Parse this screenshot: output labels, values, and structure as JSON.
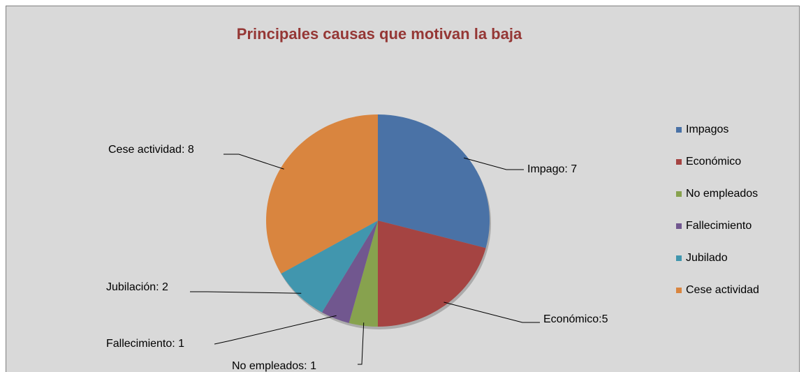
{
  "chart_data": {
    "type": "pie",
    "title": "Principales causas que motivan la baja",
    "categories": [
      "Impagos",
      "Económico",
      "No empleados",
      "Fallecimiento",
      "Jubilado",
      "Cese actividad"
    ],
    "values": [
      7,
      5,
      1,
      1,
      2,
      8
    ],
    "value_labels": [
      "Impago: 7",
      "Económico:5",
      "No empleados: 1",
      "Fallecimiento: 1",
      "Jubilación: 2",
      "Cese actividad: 8"
    ],
    "colors": [
      "#4a72a6",
      "#a54442",
      "#87a24e",
      "#71578f",
      "#4196ae",
      "#d9853f"
    ],
    "legend": "right"
  }
}
